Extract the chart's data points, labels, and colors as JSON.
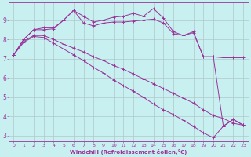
{
  "xlabel": "Windchill (Refroidissement éolien,°C)",
  "background_color": "#c8f0f0",
  "grid_color": "#b0c8c8",
  "line_color": "#993399",
  "xlim": [
    -0.5,
    23.5
  ],
  "ylim": [
    2.7,
    9.9
  ],
  "xticks": [
    0,
    1,
    2,
    3,
    4,
    5,
    6,
    7,
    8,
    9,
    10,
    11,
    12,
    13,
    14,
    15,
    16,
    17,
    18,
    19,
    20,
    21,
    22,
    23
  ],
  "yticks": [
    3,
    4,
    5,
    6,
    7,
    8,
    9
  ],
  "line1_x": [
    0,
    1,
    2,
    3,
    4,
    5,
    6,
    7,
    8,
    9,
    10,
    11,
    12,
    13,
    14,
    15,
    16,
    17,
    18,
    19,
    20,
    21,
    22,
    23
  ],
  "line1_y": [
    7.2,
    8.0,
    8.5,
    8.6,
    8.6,
    9.0,
    9.5,
    9.2,
    8.9,
    9.0,
    9.15,
    9.2,
    9.35,
    9.2,
    9.6,
    9.1,
    8.4,
    8.2,
    8.4,
    7.1,
    7.1,
    3.5,
    3.85,
    3.55
  ],
  "line2_x": [
    0,
    1,
    2,
    3,
    4,
    5,
    6,
    7,
    8,
    9,
    10,
    11,
    12,
    13,
    14,
    15,
    16,
    17,
    18,
    19,
    20,
    21,
    22,
    23
  ],
  "line2_y": [
    7.2,
    8.0,
    8.5,
    8.5,
    8.55,
    9.0,
    9.5,
    8.85,
    8.7,
    8.85,
    8.9,
    8.9,
    8.95,
    9.0,
    9.05,
    8.85,
    8.3,
    8.2,
    8.35,
    7.1,
    7.1,
    7.05,
    7.05,
    7.05
  ],
  "line3_x": [
    0,
    1,
    2,
    3,
    4,
    5,
    6,
    7,
    8,
    9,
    10,
    11,
    12,
    13,
    14,
    15,
    16,
    17,
    18,
    19,
    20,
    21,
    22,
    23
  ],
  "line3_y": [
    7.2,
    7.9,
    8.2,
    8.2,
    8.0,
    7.75,
    7.55,
    7.35,
    7.1,
    6.9,
    6.65,
    6.45,
    6.2,
    5.95,
    5.7,
    5.45,
    5.2,
    4.95,
    4.7,
    4.35,
    4.05,
    3.9,
    3.65,
    3.55
  ],
  "line4_x": [
    0,
    1,
    2,
    3,
    4,
    5,
    6,
    7,
    8,
    9,
    10,
    11,
    12,
    13,
    14,
    15,
    16,
    17,
    18,
    19,
    20,
    21,
    22,
    23
  ],
  "line4_y": [
    7.2,
    7.85,
    8.15,
    8.1,
    7.8,
    7.5,
    7.2,
    6.9,
    6.55,
    6.25,
    5.9,
    5.6,
    5.3,
    5.0,
    4.65,
    4.35,
    4.1,
    3.8,
    3.5,
    3.15,
    2.9,
    3.5,
    3.85,
    3.55
  ]
}
